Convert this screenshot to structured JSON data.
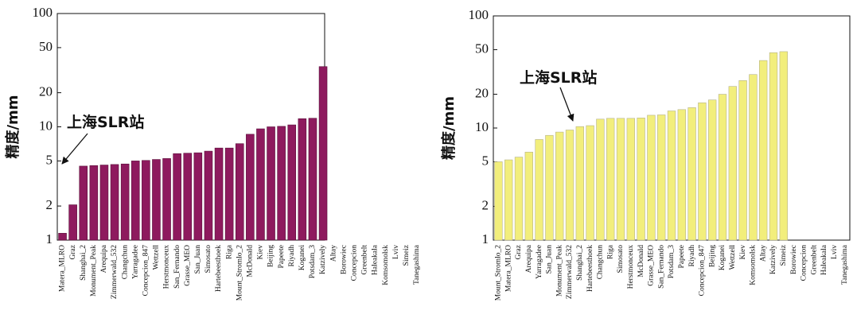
{
  "chart_data": [
    {
      "type": "bar",
      "ylabel": "精度/mm",
      "annotation": "上海SLR站",
      "log_y": true,
      "color": "#8e1a5e",
      "edgecolor": "#5a0f3a",
      "categories": [
        "Matera_MLRO",
        "Graz",
        "Shanghai_2",
        "Monument_Peak",
        "Arequipa",
        "Zimmerwald_532",
        "Changchun",
        "Yarragadee",
        "Concepcion_847",
        "Wettzell",
        "Herstmonceux",
        "San_Fernando",
        "Grasse_MEO",
        "San_Juan",
        "Simosato",
        "Hartebeesthoek",
        "Riga",
        "Mount_Stromlo_2",
        "McDonald",
        "Kiev",
        "Beijing",
        "Papeete",
        "Riyadh",
        "Koganei",
        "Potsdam_3",
        "Katzively",
        "Altay",
        "Borowiec",
        "Concepcion",
        "Greenbelt",
        "Haleakala",
        "Komsomolsk",
        "Lviv",
        "Simeiz",
        "Tanegashima"
      ],
      "values": [
        1.15,
        2.05,
        4.5,
        4.55,
        4.6,
        4.65,
        4.7,
        5.0,
        5.05,
        5.15,
        5.25,
        5.8,
        5.85,
        5.9,
        6.1,
        6.5,
        6.5,
        7.1,
        8.6,
        9.6,
        10.0,
        10.1,
        10.4,
        11.8,
        11.9,
        34,
        null,
        null,
        null,
        null,
        null,
        null,
        null,
        null,
        null
      ],
      "ylim": [
        1,
        100
      ],
      "yticks": [
        1,
        2,
        5,
        10,
        20,
        50,
        100
      ]
    },
    {
      "type": "bar",
      "ylabel": "精度/mm",
      "annotation": "上海SLR站",
      "log_y": true,
      "color": "#f2ee7c",
      "edgecolor": "#b5b28a",
      "categories": [
        "Mount_Stromlo_2",
        "Matera_MLRO",
        "Graz",
        "Arequipa",
        "Yarragadee",
        "San_Juan",
        "Monument_Peak",
        "Zimmerwald_532",
        "Shanghai_2",
        "Hartebeesthoek",
        "Changchun",
        "Riga",
        "Simosato",
        "Herstmonceux",
        "McDonald",
        "Grasse_MEO",
        "San_Fernando",
        "Potsdam_3",
        "Papeete",
        "Riyadh",
        "Concepcion_847",
        "Beijing",
        "Koganei",
        "Wettzell",
        "Kiev",
        "Komsomolsk",
        "Altay",
        "Katzively",
        "Simeiz",
        "Borowiec",
        "Concepcion",
        "Greenbelt",
        "Haleakala",
        "Lviv",
        "Tanegashima"
      ],
      "values": [
        5.0,
        5.2,
        5.5,
        6.1,
        7.9,
        8.6,
        9.2,
        9.6,
        10.3,
        10.5,
        12.0,
        12.2,
        12.2,
        12.2,
        12.3,
        13.0,
        13.1,
        14.2,
        14.6,
        15.2,
        16.8,
        17.8,
        20,
        23.5,
        26.5,
        30,
        40,
        47,
        48,
        null,
        null,
        null,
        null,
        null,
        null
      ],
      "ylim": [
        1,
        100
      ],
      "yticks": [
        1,
        2,
        5,
        10,
        20,
        50,
        100
      ]
    }
  ]
}
